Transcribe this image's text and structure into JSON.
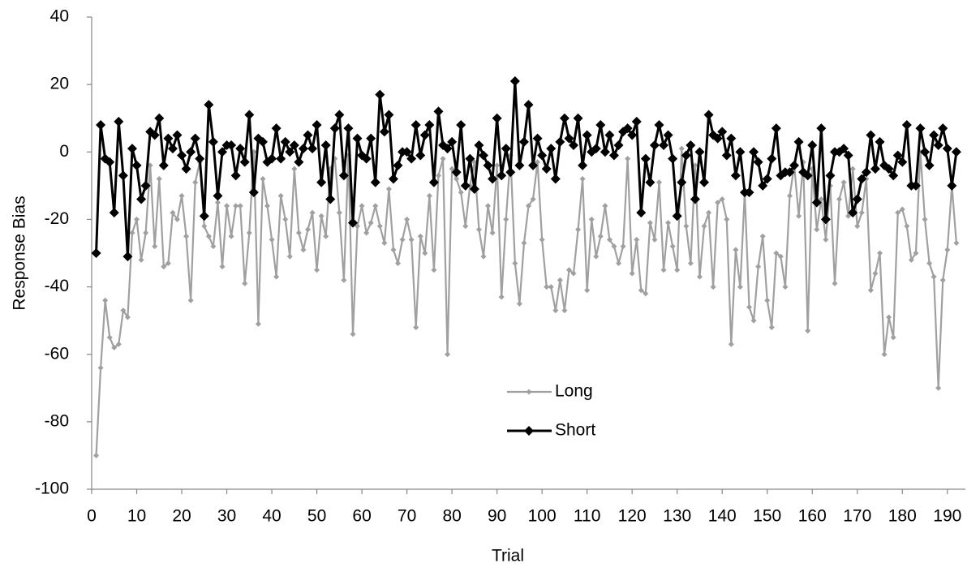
{
  "chart_data": {
    "type": "line",
    "y_label": "Response Bias",
    "x_label": "Trial",
    "x": [
      1,
      2,
      3,
      4,
      5,
      6,
      7,
      8,
      9,
      10,
      11,
      12,
      13,
      14,
      15,
      16,
      17,
      18,
      19,
      20,
      21,
      22,
      23,
      24,
      25,
      26,
      27,
      28,
      29,
      30,
      31,
      32,
      33,
      34,
      35,
      36,
      37,
      38,
      39,
      40,
      41,
      42,
      43,
      44,
      45,
      46,
      47,
      48,
      49,
      50,
      51,
      52,
      53,
      54,
      55,
      56,
      57,
      58,
      59,
      60,
      61,
      62,
      63,
      64,
      65,
      66,
      67,
      68,
      69,
      70,
      71,
      72,
      73,
      74,
      75,
      76,
      77,
      78,
      79,
      80,
      81,
      82,
      83,
      84,
      85,
      86,
      87,
      88,
      89,
      90,
      91,
      92,
      93,
      94,
      95,
      96,
      97,
      98,
      99,
      100,
      101,
      102,
      103,
      104,
      105,
      106,
      107,
      108,
      109,
      110,
      111,
      112,
      113,
      114,
      115,
      116,
      117,
      118,
      119,
      120,
      121,
      122,
      123,
      124,
      125,
      126,
      127,
      128,
      129,
      130,
      131,
      132,
      133,
      134,
      135,
      136,
      137,
      138,
      139,
      140,
      141,
      142,
      143,
      144,
      145,
      146,
      147,
      148,
      149,
      150,
      151,
      152,
      153,
      154,
      155,
      156,
      157,
      158,
      159,
      160,
      161,
      162,
      163,
      164,
      165,
      166,
      167,
      168,
      169,
      170,
      171,
      172,
      173,
      174,
      175,
      176,
      177,
      178,
      179,
      180,
      181,
      182,
      183,
      184,
      185,
      186,
      187,
      188,
      189,
      190,
      191,
      192
    ],
    "series": [
      {
        "name": "Long",
        "color": "#a0a0a0",
        "marker_size": 3.5,
        "line_width": 2.2,
        "values": [
          -90,
          -64,
          -44,
          -55,
          -58,
          -57,
          -47,
          -49,
          -24,
          -20,
          -32,
          -24,
          -4,
          -28,
          -8,
          -34,
          -33,
          -18,
          -20,
          -13,
          -25,
          -44,
          -9,
          -3,
          -22,
          -25,
          -28,
          -15,
          -34,
          -16,
          -25,
          -16,
          -16,
          -39,
          -24,
          0,
          -51,
          -8,
          -16,
          -26,
          -37,
          -13,
          -20,
          -31,
          -5,
          -24,
          -29,
          -23,
          -18,
          -35,
          -19,
          -25,
          -5,
          -2,
          -18,
          -38,
          -1,
          -54,
          -22,
          -16,
          -24,
          -21,
          -16,
          -22,
          -27,
          -11,
          -29,
          -33,
          -26,
          -20,
          -26,
          -52,
          -25,
          -30,
          -13,
          -35,
          -7,
          -2,
          -60,
          -5,
          -8,
          -12,
          -22,
          -10,
          -3,
          -23,
          -31,
          -16,
          -24,
          -4,
          -43,
          -20,
          -1,
          -33,
          -45,
          -27,
          -16,
          -14,
          -3,
          -26,
          -40,
          -40,
          -47,
          -38,
          -47,
          -35,
          -36,
          -23,
          -8,
          -41,
          -20,
          -31,
          -25,
          -16,
          -26,
          -28,
          -33,
          -28,
          -2,
          -36,
          -26,
          -41,
          -42,
          -21,
          -26,
          -9,
          -35,
          -21,
          -28,
          -35,
          1,
          -22,
          -33,
          -4,
          -37,
          -22,
          -18,
          -40,
          -15,
          -14,
          -20,
          -57,
          -29,
          -40,
          -12,
          -46,
          -50,
          -34,
          -25,
          -44,
          -52,
          -30,
          -31,
          -40,
          -13,
          -4,
          -19,
          -3,
          -53,
          -5,
          -23,
          -14,
          -26,
          -10,
          -39,
          -14,
          -9,
          -19,
          -5,
          -22,
          -18,
          -8,
          -41,
          -36,
          -30,
          -60,
          -49,
          -55,
          -18,
          -17,
          -22,
          -32,
          -30,
          0,
          -20,
          -33,
          -37,
          -70,
          -38,
          -29,
          -10,
          -27
        ]
      },
      {
        "name": "Short",
        "color": "#000000",
        "marker_size": 6,
        "line_width": 3,
        "values": [
          -30,
          8,
          -2,
          -3,
          -18,
          9,
          -7,
          -31,
          1,
          -4,
          -14,
          -10,
          6,
          5,
          10,
          -4,
          4,
          1,
          5,
          -1,
          -5,
          0,
          4,
          -2,
          -19,
          14,
          3,
          -13,
          0,
          2,
          2,
          -7,
          1,
          -3,
          11,
          -12,
          4,
          3,
          -3,
          -2,
          7,
          -2,
          3,
          0,
          2,
          -3,
          1,
          5,
          1,
          8,
          -9,
          2,
          -14,
          7,
          11,
          -7,
          7,
          -21,
          4,
          -1,
          -2,
          4,
          -9,
          17,
          6,
          11,
          -8,
          -4,
          0,
          0,
          -2,
          8,
          -1,
          5,
          8,
          -9,
          12,
          2,
          1,
          3,
          -6,
          8,
          -10,
          -2,
          -11,
          2,
          -1,
          -4,
          -8,
          10,
          -7,
          1,
          -6,
          21,
          -4,
          3,
          14,
          -4,
          4,
          -1,
          -5,
          1,
          -8,
          3,
          10,
          4,
          2,
          10,
          -4,
          5,
          0,
          1,
          8,
          0,
          5,
          -1,
          2,
          6,
          7,
          5,
          9,
          -18,
          -2,
          -9,
          2,
          8,
          2,
          5,
          -2,
          -19,
          -9,
          -1,
          2,
          -14,
          0,
          -9,
          11,
          5,
          4,
          6,
          -1,
          4,
          -7,
          0,
          -12,
          -12,
          0,
          -3,
          -10,
          -8,
          -2,
          7,
          -7,
          -6,
          -6,
          -4,
          3,
          -6,
          -7,
          2,
          -15,
          7,
          -20,
          -7,
          0,
          0,
          1,
          -1,
          -18,
          -14,
          -8,
          -6,
          5,
          -5,
          3,
          -4,
          -5,
          -7,
          -1,
          -3,
          8,
          -10,
          -10,
          7,
          0,
          -4,
          5,
          2,
          7,
          1,
          -10,
          0
        ]
      }
    ],
    "xlim": [
      0,
      194
    ],
    "xticks": [
      0,
      10,
      20,
      30,
      40,
      50,
      60,
      70,
      80,
      90,
      100,
      110,
      120,
      130,
      140,
      150,
      160,
      170,
      180,
      190
    ],
    "ylim": [
      -100,
      40
    ],
    "yticks": [
      -100,
      -80,
      -60,
      -40,
      -20,
      0,
      20,
      40
    ]
  }
}
